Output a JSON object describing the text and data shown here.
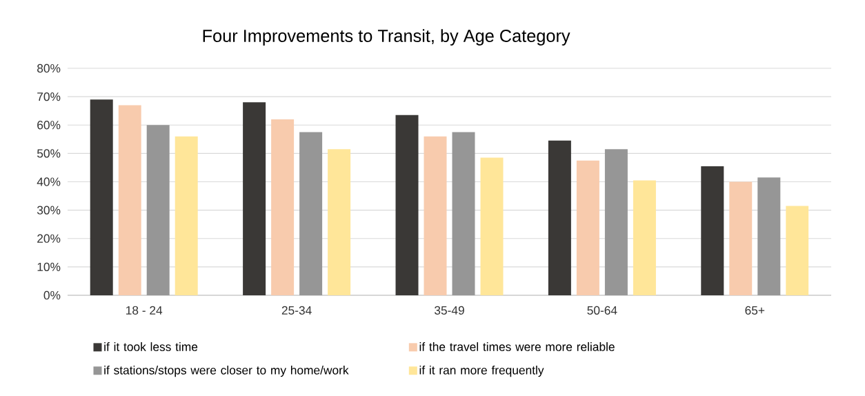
{
  "chart_data": {
    "type": "bar",
    "title": "Four Improvements to Transit, by Age Category",
    "categories": [
      "18 - 24",
      "25-34",
      "35-49",
      "50-64",
      "65+"
    ],
    "series": [
      {
        "name": "if it took less time",
        "color": "#3a3836",
        "values": [
          69,
          68,
          63.5,
          54.5,
          45.5
        ]
      },
      {
        "name": "if the travel times were more reliable",
        "color": "#f8cbad",
        "values": [
          67,
          62,
          56,
          47.5,
          40
        ]
      },
      {
        "name": "if stations/stops were closer to my home/work",
        "color": "#969696",
        "values": [
          60,
          57.5,
          57.5,
          51.5,
          41.5
        ]
      },
      {
        "name": "if it ran more frequently",
        "color": "#ffe699",
        "values": [
          56,
          51.5,
          48.5,
          40.5,
          31.5
        ]
      }
    ],
    "ylim": [
      0,
      80
    ],
    "yticks": [
      {
        "value": 0,
        "label": "0%"
      },
      {
        "value": 10,
        "label": "10%"
      },
      {
        "value": 20,
        "label": "20%"
      },
      {
        "value": 30,
        "label": "30%"
      },
      {
        "value": 40,
        "label": "40%"
      },
      {
        "value": 50,
        "label": "50%"
      },
      {
        "value": 60,
        "label": "60%"
      },
      {
        "value": 70,
        "label": "70%"
      },
      {
        "value": 80,
        "label": "80%"
      }
    ],
    "grid": "y",
    "legend": "bottom"
  }
}
